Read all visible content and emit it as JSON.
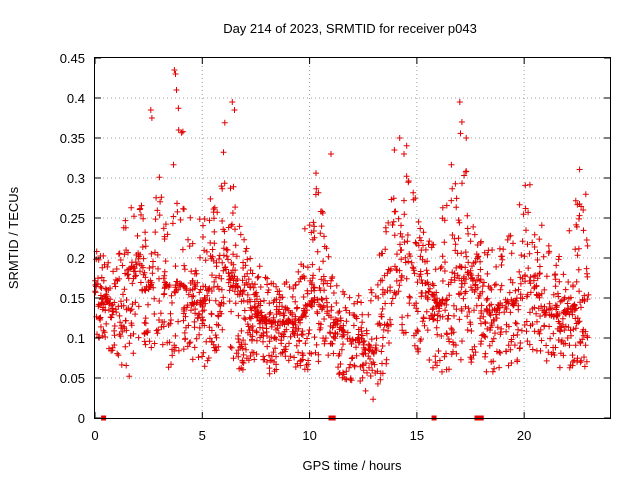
{
  "chart_data": {
    "type": "scatter",
    "title": "Day 214 of 2023, SRMTID for receiver p043",
    "xlabel": "GPS time / hours",
    "ylabel": "SRMTID / TECUs",
    "xlim": [
      0,
      24
    ],
    "ylim": [
      0,
      0.45
    ],
    "grid": true,
    "x_ticks": [
      0,
      5,
      10,
      15,
      20
    ],
    "x_tick_labels": [
      "0",
      "5",
      "10",
      "15",
      "20"
    ],
    "y_ticks": [
      0,
      0.05,
      0.1,
      0.15,
      0.2,
      0.25,
      0.3,
      0.35,
      0.4,
      0.45
    ],
    "y_tick_labels": [
      "0",
      "0.05",
      "0.1",
      "0.15",
      "0.2",
      "0.25",
      "0.3",
      "0.35",
      "0.4",
      "0.45"
    ],
    "marker": "plus",
    "color": "#e00000",
    "series": [
      {
        "name": "SRMTID",
        "approx_envelope": {
          "x": [
            0,
            0.5,
            1,
            1.5,
            2,
            2.5,
            3,
            3.5,
            4,
            4.5,
            5,
            5.5,
            6,
            6.5,
            7,
            7.5,
            8,
            8.5,
            9,
            9.5,
            10,
            10.5,
            11,
            11.5,
            12,
            12.5,
            13,
            13.5,
            14,
            14.5,
            15,
            15.5,
            16,
            16.5,
            17,
            17.5,
            18,
            18.5,
            19,
            19.5,
            20,
            20.5,
            21,
            21.5,
            22,
            22.5,
            23
          ],
          "median": [
            0.16,
            0.15,
            0.13,
            0.17,
            0.2,
            0.16,
            0.19,
            0.15,
            0.17,
            0.15,
            0.14,
            0.17,
            0.19,
            0.17,
            0.15,
            0.13,
            0.12,
            0.12,
            0.12,
            0.12,
            0.14,
            0.15,
            0.12,
            0.11,
            0.1,
            0.09,
            0.08,
            0.15,
            0.2,
            0.22,
            0.17,
            0.16,
            0.14,
            0.15,
            0.19,
            0.18,
            0.14,
            0.13,
            0.14,
            0.14,
            0.18,
            0.16,
            0.13,
            0.13,
            0.13,
            0.14,
            0.15
          ],
          "high": [
            0.22,
            0.2,
            0.2,
            0.27,
            0.29,
            0.24,
            0.38,
            0.27,
            0.43,
            0.26,
            0.26,
            0.3,
            0.39,
            0.28,
            0.22,
            0.2,
            0.18,
            0.17,
            0.18,
            0.19,
            0.29,
            0.33,
            0.2,
            0.17,
            0.15,
            0.16,
            0.18,
            0.24,
            0.35,
            0.35,
            0.28,
            0.22,
            0.24,
            0.36,
            0.39,
            0.27,
            0.23,
            0.22,
            0.21,
            0.24,
            0.33,
            0.26,
            0.24,
            0.2,
            0.22,
            0.33,
            0.27
          ],
          "low": [
            0.09,
            0.08,
            0.08,
            0.04,
            0.1,
            0.08,
            0.09,
            0.05,
            0.09,
            0.07,
            0.06,
            0.08,
            0.09,
            0.07,
            0.05,
            0.05,
            0.05,
            0.06,
            0.06,
            0.06,
            0.06,
            0.07,
            0.06,
            0.05,
            0.04,
            0.03,
            0.02,
            0.06,
            0.1,
            0.1,
            0.08,
            0.07,
            0.05,
            0.06,
            0.07,
            0.07,
            0.06,
            0.05,
            0.06,
            0.06,
            0.08,
            0.08,
            0.07,
            0.06,
            0.06,
            0.07,
            0.06
          ]
        },
        "outliers": {
          "x": [
            3.7,
            3.75,
            3.8,
            3.9,
            6.4,
            6.5,
            17.0,
            17.1,
            17.3,
            2.6,
            2.65,
            11.0,
            14.2,
            14.4
          ],
          "y": [
            0.435,
            0.43,
            0.41,
            0.36,
            0.395,
            0.385,
            0.395,
            0.37,
            0.35,
            0.385,
            0.375,
            0.33,
            0.35,
            0.33
          ]
        },
        "zero_points_x": [
          0.4,
          11.0,
          11.1,
          15.8,
          17.8,
          17.9,
          18.0
        ]
      }
    ]
  }
}
